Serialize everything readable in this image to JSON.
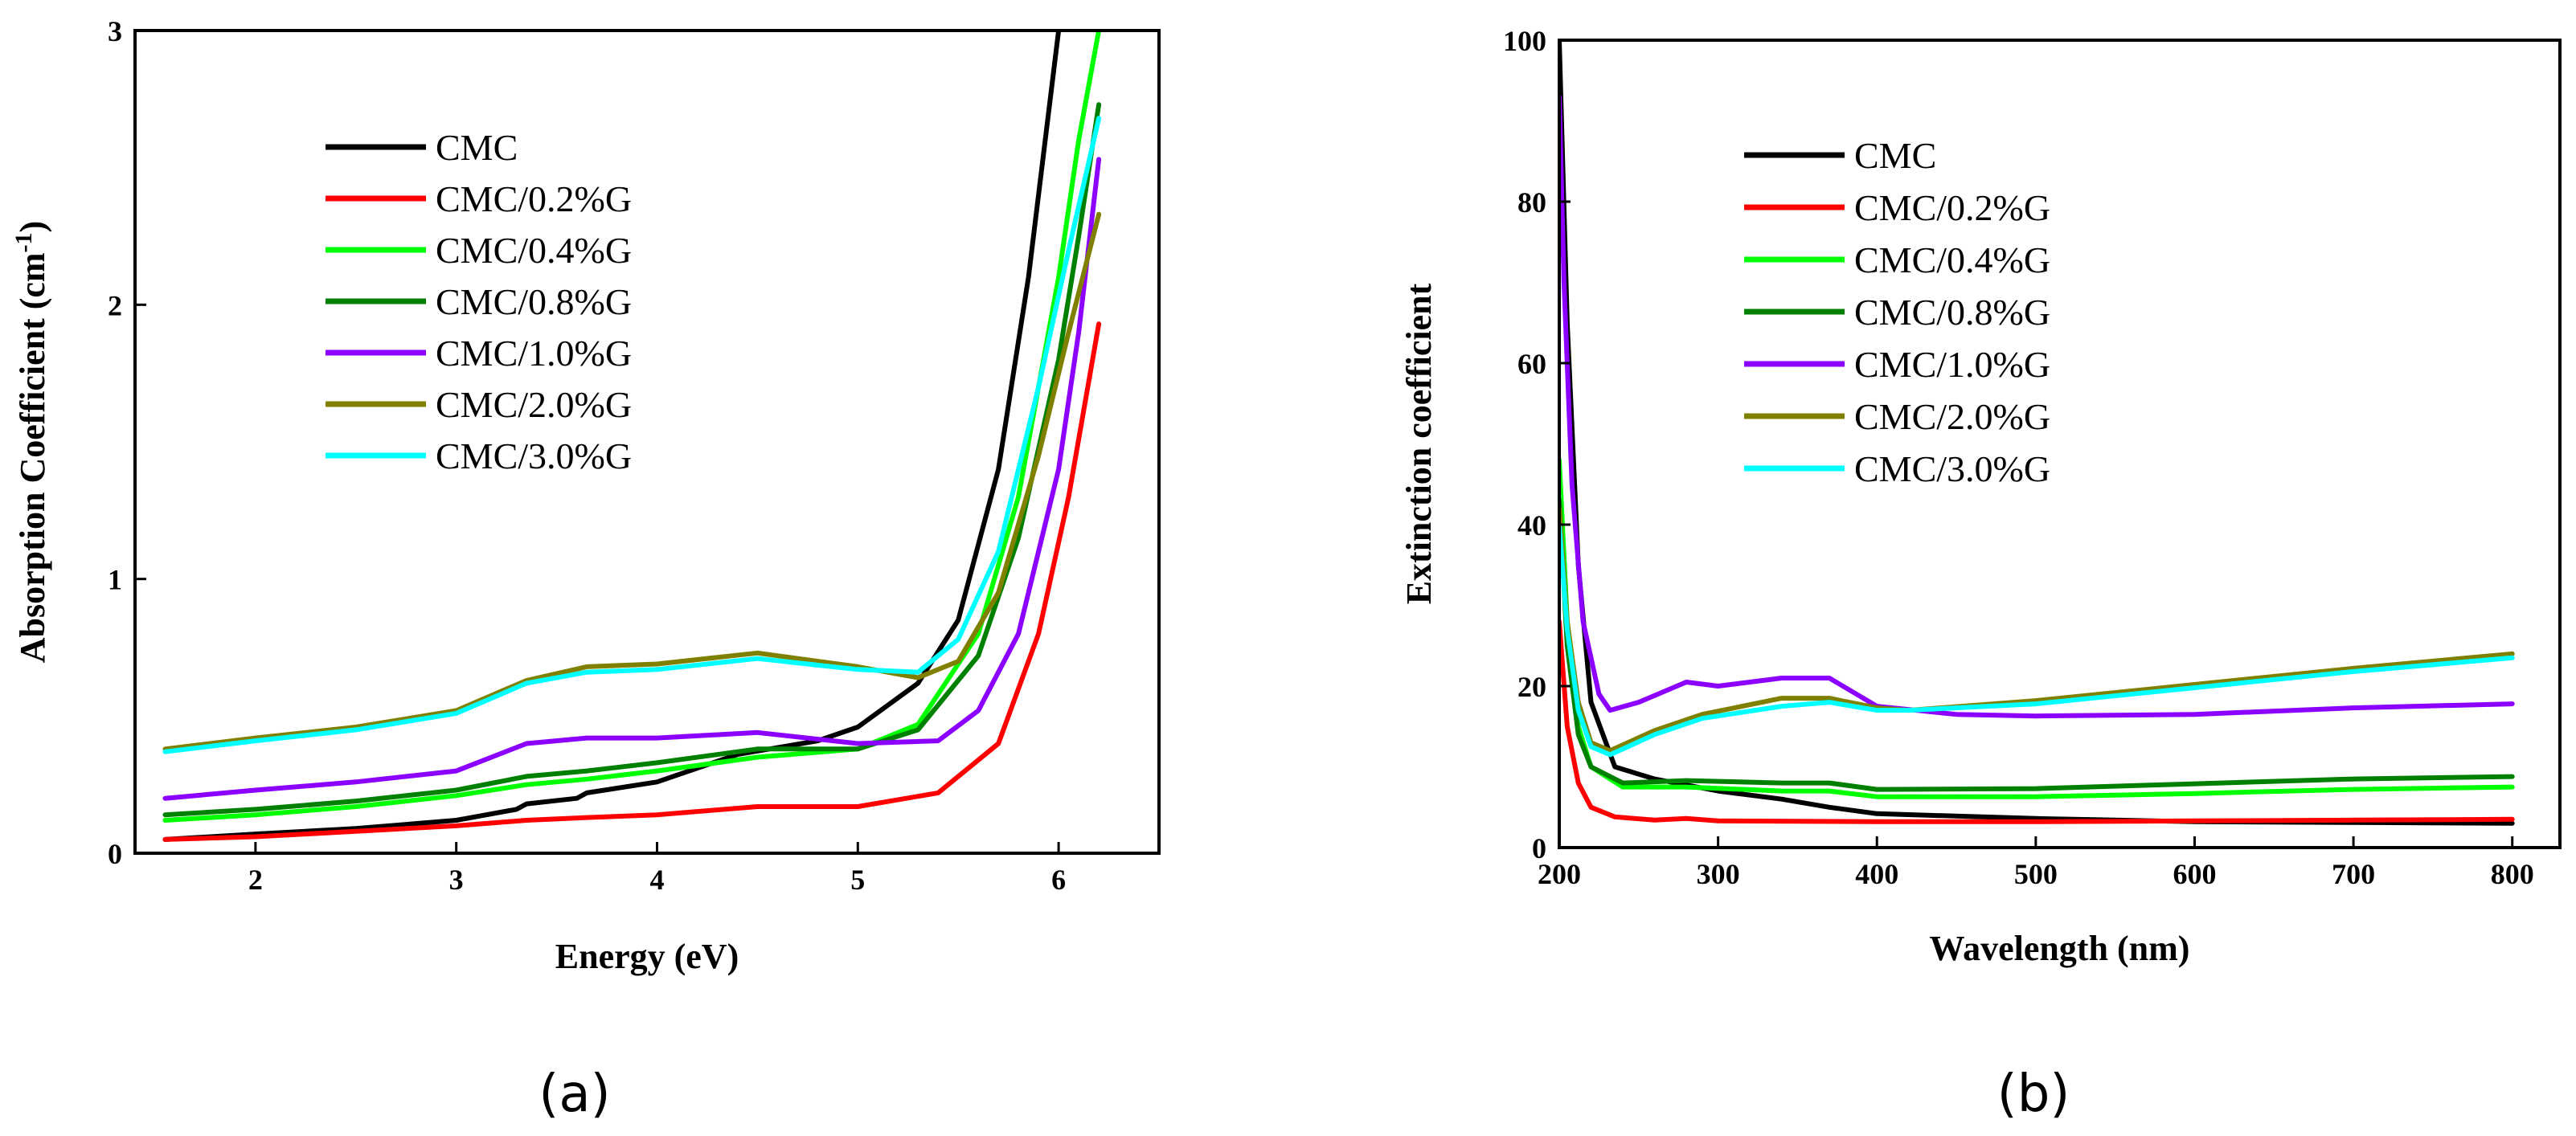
{
  "chart_data": [
    {
      "type": "line",
      "caption": "(a)",
      "xlabel": "Energy (eV)",
      "ylabel": "Absorption Coefficient (cm",
      "ylabel_sup": "-1",
      "ylabel_close": ")",
      "xlim": [
        1.4,
        6.5
      ],
      "ylim": [
        0,
        3
      ],
      "xticks": [
        2,
        3,
        4,
        5,
        6
      ],
      "yticks": [
        0,
        1,
        2,
        3
      ],
      "legend_position": "top-left",
      "series": [
        {
          "name": "CMC",
          "color": "#000000",
          "x": [
            1.55,
            2.0,
            2.5,
            3.0,
            3.3,
            3.35,
            3.6,
            3.65,
            4.0,
            4.4,
            4.8,
            5.0,
            5.3,
            5.5,
            5.7,
            5.85,
            5.95,
            6.0
          ],
          "y": [
            0.05,
            0.07,
            0.09,
            0.12,
            0.16,
            0.18,
            0.2,
            0.22,
            0.26,
            0.36,
            0.41,
            0.46,
            0.62,
            0.85,
            1.4,
            2.1,
            2.7,
            3.0
          ]
        },
        {
          "name": "CMC/0.2%G",
          "color": "#ff0000",
          "x": [
            1.55,
            2.0,
            2.5,
            3.0,
            3.35,
            3.65,
            4.0,
            4.5,
            5.0,
            5.4,
            5.7,
            5.9,
            6.05,
            6.2
          ],
          "y": [
            0.05,
            0.06,
            0.08,
            0.1,
            0.12,
            0.13,
            0.14,
            0.17,
            0.17,
            0.22,
            0.4,
            0.8,
            1.3,
            1.93
          ]
        },
        {
          "name": "CMC/0.4%G",
          "color": "#00ff00",
          "x": [
            1.55,
            2.0,
            2.5,
            3.0,
            3.35,
            3.65,
            4.0,
            4.5,
            5.0,
            5.3,
            5.6,
            5.8,
            6.0,
            6.1,
            6.2
          ],
          "y": [
            0.12,
            0.14,
            0.17,
            0.21,
            0.25,
            0.27,
            0.3,
            0.35,
            0.38,
            0.47,
            0.8,
            1.3,
            2.1,
            2.6,
            3.0
          ]
        },
        {
          "name": "CMC/0.8%G",
          "color": "#008000",
          "x": [
            1.55,
            2.0,
            2.5,
            3.0,
            3.35,
            3.65,
            4.0,
            4.5,
            5.0,
            5.3,
            5.6,
            5.8,
            6.0,
            6.1,
            6.2
          ],
          "y": [
            0.14,
            0.16,
            0.19,
            0.23,
            0.28,
            0.3,
            0.33,
            0.38,
            0.38,
            0.45,
            0.72,
            1.15,
            1.8,
            2.25,
            2.73
          ]
        },
        {
          "name": "CMC/1.0%G",
          "color": "#8b00ff",
          "x": [
            1.55,
            2.0,
            2.5,
            3.0,
            3.35,
            3.65,
            4.0,
            4.5,
            5.0,
            5.4,
            5.6,
            5.8,
            6.0,
            6.1,
            6.2
          ],
          "y": [
            0.2,
            0.23,
            0.26,
            0.3,
            0.4,
            0.42,
            0.42,
            0.44,
            0.4,
            0.41,
            0.52,
            0.8,
            1.4,
            1.9,
            2.53
          ]
        },
        {
          "name": "CMC/2.0%G",
          "color": "#808000",
          "x": [
            1.55,
            2.0,
            2.5,
            3.0,
            3.35,
            3.65,
            4.0,
            4.5,
            5.0,
            5.3,
            5.5,
            5.7,
            5.9,
            6.05,
            6.2
          ],
          "y": [
            0.38,
            0.42,
            0.46,
            0.52,
            0.63,
            0.68,
            0.69,
            0.73,
            0.68,
            0.64,
            0.7,
            0.95,
            1.45,
            1.9,
            2.33
          ]
        },
        {
          "name": "CMC/3.0%G",
          "color": "#00ffff",
          "x": [
            1.55,
            2.0,
            2.5,
            3.0,
            3.35,
            3.65,
            4.0,
            4.5,
            5.0,
            5.3,
            5.5,
            5.7,
            5.9,
            6.05,
            6.2
          ],
          "y": [
            0.37,
            0.41,
            0.45,
            0.51,
            0.62,
            0.66,
            0.67,
            0.71,
            0.67,
            0.66,
            0.78,
            1.1,
            1.7,
            2.2,
            2.68
          ]
        }
      ]
    },
    {
      "type": "line",
      "caption": "(b)",
      "xlabel": "Wavelength (nm)",
      "ylabel": "Extinction coefficient",
      "xlim": [
        200,
        830
      ],
      "ylim": [
        0,
        100
      ],
      "xticks": [
        200,
        300,
        400,
        500,
        600,
        700,
        800
      ],
      "yticks": [
        0,
        20,
        40,
        60,
        80,
        100
      ],
      "legend_position": "top-center",
      "series": [
        {
          "name": "CMC",
          "color": "#000000",
          "x": [
            200,
            205,
            212,
            220,
            235,
            260,
            300,
            340,
            370,
            400,
            500,
            600,
            700,
            800
          ],
          "y": [
            100,
            65,
            35,
            18,
            10,
            8.5,
            7,
            6,
            5,
            4.2,
            3.6,
            3.2,
            3.1,
            3.0
          ]
        },
        {
          "name": "CMC/0.2%G",
          "color": "#ff0000",
          "x": [
            200,
            205,
            212,
            220,
            235,
            260,
            280,
            300,
            400,
            500,
            600,
            700,
            800
          ],
          "y": [
            28,
            15,
            8,
            5,
            3.8,
            3.4,
            3.6,
            3.3,
            3.2,
            3.2,
            3.3,
            3.4,
            3.5
          ]
        },
        {
          "name": "CMC/0.4%G",
          "color": "#00ff00",
          "x": [
            200,
            205,
            212,
            220,
            240,
            280,
            340,
            370,
            400,
            500,
            600,
            700,
            800
          ],
          "y": [
            48,
            28,
            15,
            10,
            7.5,
            7.5,
            7,
            7,
            6.3,
            6.3,
            6.7,
            7.2,
            7.5
          ]
        },
        {
          "name": "CMC/0.8%G",
          "color": "#008000",
          "x": [
            200,
            205,
            212,
            220,
            240,
            280,
            340,
            370,
            400,
            500,
            600,
            700,
            800
          ],
          "y": [
            43,
            25,
            14,
            10,
            8,
            8.3,
            8,
            8,
            7.2,
            7.3,
            7.9,
            8.5,
            8.8
          ]
        },
        {
          "name": "CMC/1.0%G",
          "color": "#8b00ff",
          "x": [
            200,
            203,
            208,
            215,
            225,
            232,
            250,
            280,
            300,
            340,
            370,
            400,
            450,
            500,
            600,
            700,
            800
          ],
          "y": [
            93,
            70,
            45,
            28,
            19,
            17,
            18,
            20.5,
            20,
            21,
            21,
            17.5,
            16.5,
            16.3,
            16.5,
            17.3,
            17.8
          ]
        },
        {
          "name": "CMC/2.0%G",
          "color": "#808000",
          "x": [
            200,
            205,
            212,
            220,
            232,
            260,
            290,
            340,
            370,
            400,
            420,
            500,
            600,
            700,
            800
          ],
          "y": [
            42,
            28,
            18,
            13,
            12,
            14.5,
            16.5,
            18.5,
            18.5,
            17.3,
            17,
            18.2,
            20.2,
            22.2,
            24.0
          ]
        },
        {
          "name": "CMC/3.0%G",
          "color": "#00ffff",
          "x": [
            200,
            205,
            212,
            220,
            232,
            260,
            290,
            340,
            370,
            400,
            420,
            500,
            600,
            700,
            800
          ],
          "y": [
            40,
            27,
            17,
            12.5,
            11.5,
            14,
            16,
            17.5,
            18,
            17,
            17,
            17.8,
            19.8,
            21.8,
            23.5
          ]
        }
      ]
    }
  ]
}
